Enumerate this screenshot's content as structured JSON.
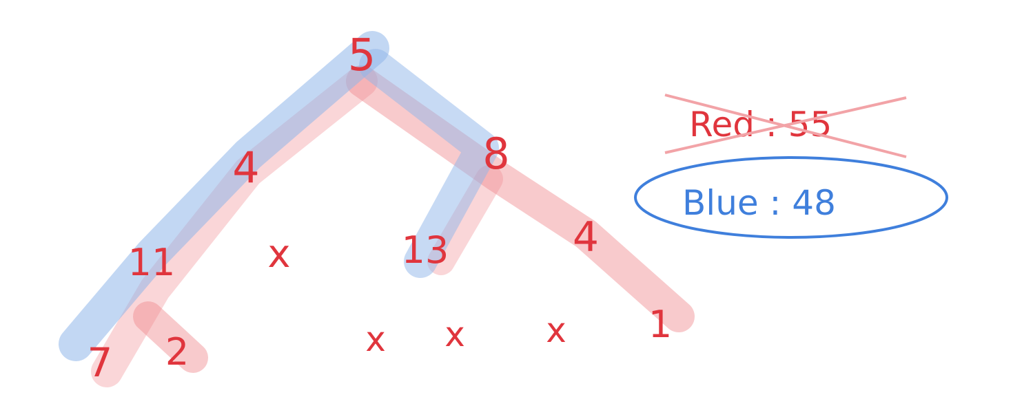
{
  "diagram": {
    "type": "binary-tree",
    "root": "5",
    "nodes": [
      {
        "id": "root",
        "label": "5"
      },
      {
        "id": "l",
        "label": "4"
      },
      {
        "id": "r",
        "label": "8"
      },
      {
        "id": "ll",
        "label": "11"
      },
      {
        "id": "lr",
        "label": "x"
      },
      {
        "id": "rl",
        "label": "13"
      },
      {
        "id": "rr",
        "label": "4"
      },
      {
        "id": "lll",
        "label": "7"
      },
      {
        "id": "llr",
        "label": "2"
      },
      {
        "id": "rll",
        "label": "x"
      },
      {
        "id": "rlr",
        "label": "x"
      },
      {
        "id": "rrl",
        "label": "x"
      },
      {
        "id": "rrr",
        "label": "1"
      }
    ],
    "paths": {
      "red": {
        "name": "Red",
        "color": "#f08a8f",
        "nodes": [
          "root",
          "r",
          "rr",
          "rrr"
        ]
      },
      "blue": {
        "name": "Blue",
        "color": "#8fb6ea",
        "nodes": [
          "root",
          "l",
          "ll",
          "lll"
        ]
      }
    }
  },
  "legend": {
    "red_label": "Red : 55",
    "red_struck": true,
    "blue_label": "Blue : 48",
    "blue_circled": true
  },
  "colors": {
    "node_text": "#e0353d",
    "red_highlight": "#f08a8f",
    "blue_highlight": "#8fb6ea",
    "blue_text": "#3f7fdc",
    "strike": "#f2a3a7"
  }
}
